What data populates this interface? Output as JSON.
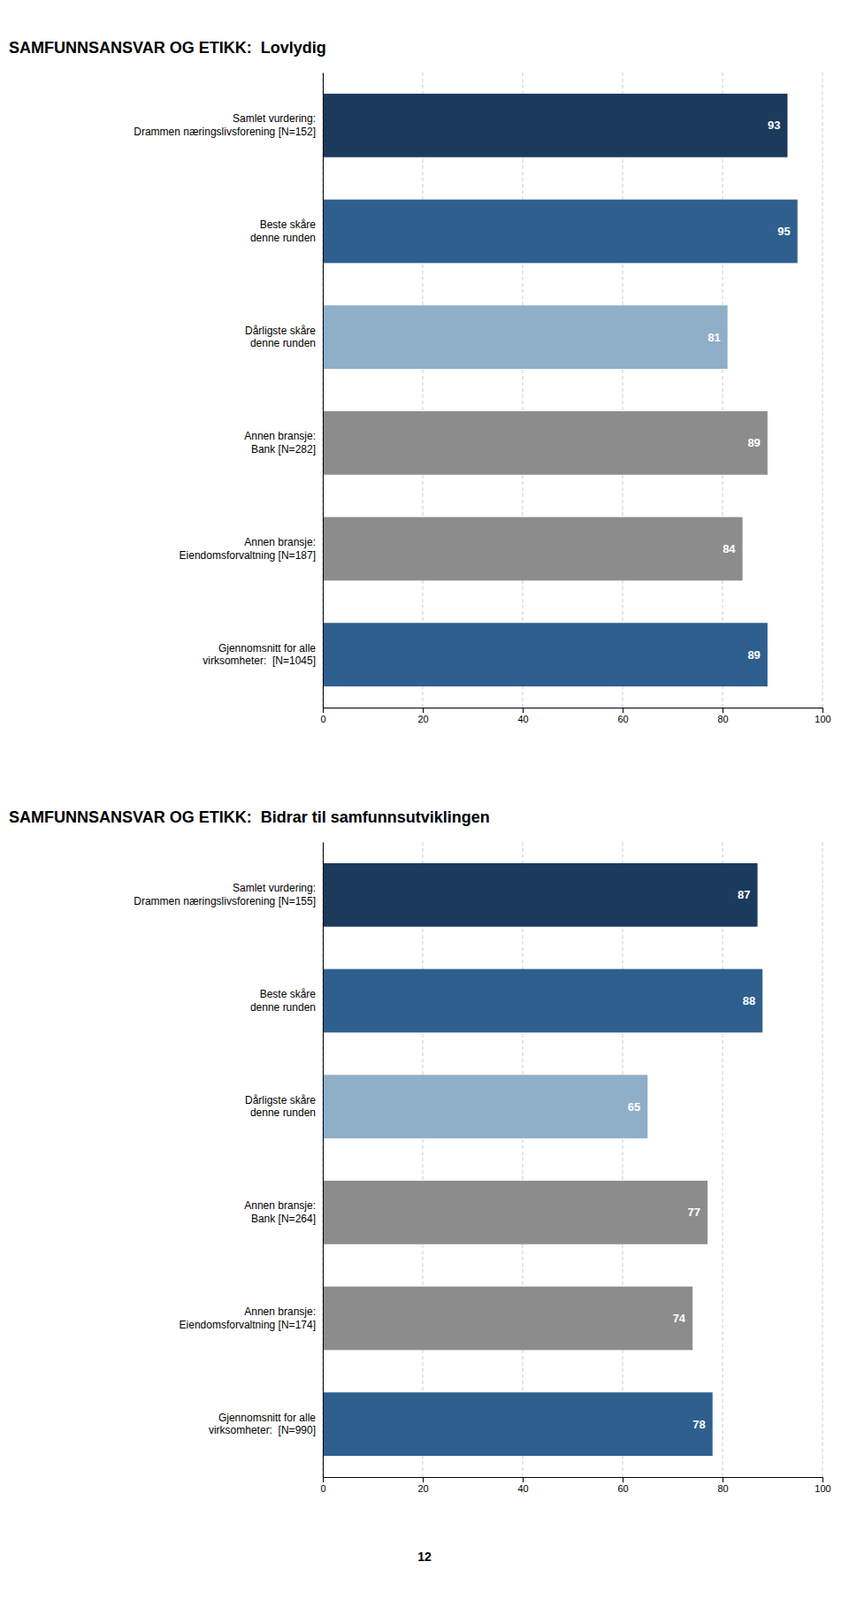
{
  "chart_data": [
    {
      "type": "bar",
      "orientation": "horizontal",
      "title": "SAMFUNNSANSVAR OG ETIKK:  Lovlydig",
      "categories": [
        "Samlet vurdering:\nDrammen næringslivsforening [N=152]",
        "Beste skåre\ndenne runden",
        "Dårligste skåre\ndenne runden",
        "Annen bransje:\nBank [N=282]",
        "Annen bransje:\nEiendomsforvaltning [N=187]",
        "Gjennomsnitt for alle\nvirksomheter:  [N=1045]"
      ],
      "values": [
        93,
        95,
        81,
        89,
        84,
        89
      ],
      "colors": [
        "#1b3a5c",
        "#2e5f8e",
        "#8faec8",
        "#8c8c8c",
        "#8c8c8c",
        "#2e5f8e"
      ],
      "xlim": [
        0,
        100
      ],
      "xticks": [
        0,
        20,
        40,
        60,
        80,
        100
      ],
      "grid": true,
      "data_labels": true
    },
    {
      "type": "bar",
      "orientation": "horizontal",
      "title": "SAMFUNNSANSVAR OG ETIKK:  Bidrar til samfunnsutviklingen",
      "categories": [
        "Samlet vurdering:\nDrammen næringslivsforening [N=155]",
        "Beste skåre\ndenne runden",
        "Dårligste skåre\ndenne runden",
        "Annen bransje:\nBank [N=264]",
        "Annen bransje:\nEiendomsforvaltning [N=174]",
        "Gjennomsnitt for alle\nvirksomheter:  [N=990]"
      ],
      "values": [
        87,
        88,
        65,
        77,
        74,
        78
      ],
      "colors": [
        "#1b3a5c",
        "#2e5f8e",
        "#8faec8",
        "#8c8c8c",
        "#8c8c8c",
        "#2e5f8e"
      ],
      "xlim": [
        0,
        100
      ],
      "xticks": [
        0,
        20,
        40,
        60,
        80,
        100
      ],
      "grid": true,
      "data_labels": true,
      "annotations": [
        "12"
      ]
    }
  ]
}
